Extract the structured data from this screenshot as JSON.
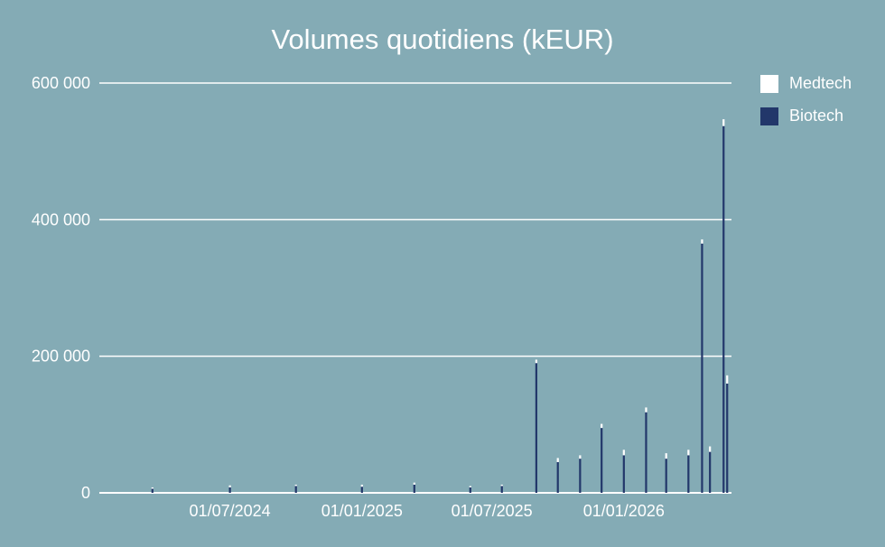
{
  "chart_data": {
    "type": "bar",
    "stacked": true,
    "title": "Volumes quotidiens (kEUR)",
    "x_ticks": [
      "01/07/2024",
      "01/01/2025",
      "01/07/2025",
      "01/01/2026"
    ],
    "y_ticks": [
      "0",
      "200 000",
      "400 000",
      "600 000"
    ],
    "ylim": [
      0,
      600000
    ],
    "x_range": [
      "2024-01-01",
      "2026-05-31"
    ],
    "grid": "horizontal",
    "legend_position": "right",
    "colors": {
      "background": "#84abb5",
      "grid": "#ffffff",
      "Medtech": "#ffffff",
      "Biotech": "#22376a"
    },
    "series": [
      {
        "name": "Medtech",
        "color": "#ffffff"
      },
      {
        "name": "Biotech",
        "color": "#22376a"
      }
    ],
    "x": [
      "2024-03-15",
      "2024-07-01",
      "2024-10-01",
      "2025-01-01",
      "2025-03-15",
      "2025-06-01",
      "2025-07-15",
      "2025-09-01",
      "2025-10-01",
      "2025-11-01",
      "2025-12-01",
      "2026-01-01",
      "2026-02-01",
      "2026-03-01",
      "2026-04-01",
      "2026-04-20",
      "2026-05-01",
      "2026-05-20",
      "2026-05-25"
    ],
    "biotech_values": [
      6000,
      8000,
      10000,
      9000,
      12000,
      8000,
      10000,
      190000,
      45000,
      50000,
      95000,
      55000,
      118000,
      50000,
      55000,
      365000,
      60000,
      537000,
      160000
    ],
    "medtech_values": [
      2000,
      3000,
      2000,
      3000,
      3000,
      2000,
      2000,
      5000,
      6000,
      5000,
      6000,
      8000,
      7000,
      8000,
      8000,
      6000,
      8000,
      10000,
      12000
    ]
  }
}
